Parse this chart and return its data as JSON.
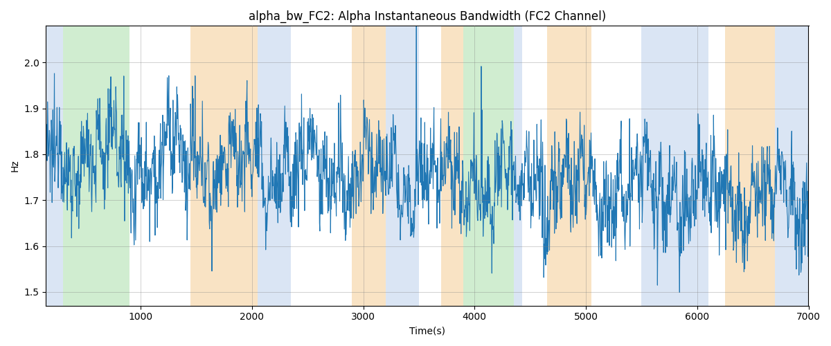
{
  "title": "alpha_bw_FC2: Alpha Instantaneous Bandwidth (FC2 Channel)",
  "xlabel": "Time(s)",
  "ylabel": "Hz",
  "xlim": [
    150,
    7000
  ],
  "ylim": [
    1.47,
    2.08
  ],
  "line_color": "#2077b4",
  "line_width": 0.8,
  "bands": [
    {
      "start": 150,
      "end": 300,
      "color": "#aec6e8",
      "alpha": 0.45
    },
    {
      "start": 300,
      "end": 900,
      "color": "#98d898",
      "alpha": 0.45
    },
    {
      "start": 1450,
      "end": 2050,
      "color": "#f5c98a",
      "alpha": 0.5
    },
    {
      "start": 2050,
      "end": 2350,
      "color": "#aec6e8",
      "alpha": 0.45
    },
    {
      "start": 2900,
      "end": 3200,
      "color": "#f5c98a",
      "alpha": 0.5
    },
    {
      "start": 3200,
      "end": 3500,
      "color": "#aec6e8",
      "alpha": 0.45
    },
    {
      "start": 3700,
      "end": 3900,
      "color": "#f5c98a",
      "alpha": 0.5
    },
    {
      "start": 3900,
      "end": 4350,
      "color": "#98d898",
      "alpha": 0.45
    },
    {
      "start": 4350,
      "end": 4430,
      "color": "#aec6e8",
      "alpha": 0.45
    },
    {
      "start": 4650,
      "end": 5050,
      "color": "#f5c98a",
      "alpha": 0.5
    },
    {
      "start": 5500,
      "end": 6100,
      "color": "#aec6e8",
      "alpha": 0.45
    },
    {
      "start": 6250,
      "end": 6700,
      "color": "#f5c98a",
      "alpha": 0.5
    },
    {
      "start": 6700,
      "end": 7000,
      "color": "#aec6e8",
      "alpha": 0.45
    }
  ],
  "yticks": [
    1.5,
    1.6,
    1.7,
    1.8,
    1.9,
    2.0
  ],
  "xticks": [
    1000,
    2000,
    3000,
    4000,
    5000,
    6000,
    7000
  ],
  "seed": 12345,
  "n_points": 2000,
  "t_start": 150,
  "t_end": 7000
}
